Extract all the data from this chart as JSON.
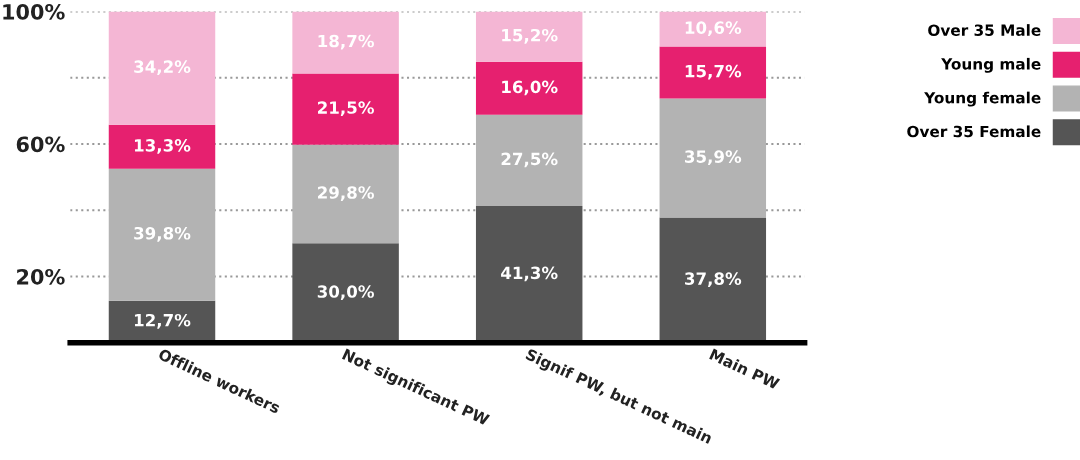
{
  "chart_data": {
    "type": "bar",
    "stacked": true,
    "categories": [
      "Offline workers",
      "Not significant PW",
      "Signif PW, but not main",
      "Main PW"
    ],
    "series": [
      {
        "name": "Over 35 Female",
        "color": "#555555",
        "values": [
          12.7,
          30.0,
          41.3,
          37.8
        ],
        "value_labels": [
          "12,7%",
          "30,0%",
          "41,3%",
          "37,8%"
        ]
      },
      {
        "name": "Young female",
        "color": "#b3b3b3",
        "values": [
          39.8,
          29.8,
          27.5,
          35.9
        ],
        "value_labels": [
          "39,8%",
          "29,8%",
          "27,5%",
          "35,9%"
        ]
      },
      {
        "name": "Young male",
        "color": "#e6206f",
        "values": [
          13.3,
          21.5,
          16.0,
          15.7
        ],
        "value_labels": [
          "13,3%",
          "21,5%",
          "16,0%",
          "15,7%"
        ]
      },
      {
        "name": "Over 35 Male",
        "color": "#f4b6d4",
        "values": [
          34.2,
          18.7,
          15.2,
          10.6
        ],
        "value_labels": [
          "34,2%",
          "18,7%",
          "15,2%",
          "10,6%"
        ]
      }
    ],
    "ylim": [
      0,
      100
    ],
    "yticks": [
      {
        "value": 20,
        "label": "20%"
      },
      {
        "value": 40,
        "label": null
      },
      {
        "value": 60,
        "label": "60%"
      },
      {
        "value": 80,
        "label": null
      },
      {
        "value": 100,
        "label": "100%"
      }
    ],
    "grid": "y",
    "legend": "right"
  }
}
